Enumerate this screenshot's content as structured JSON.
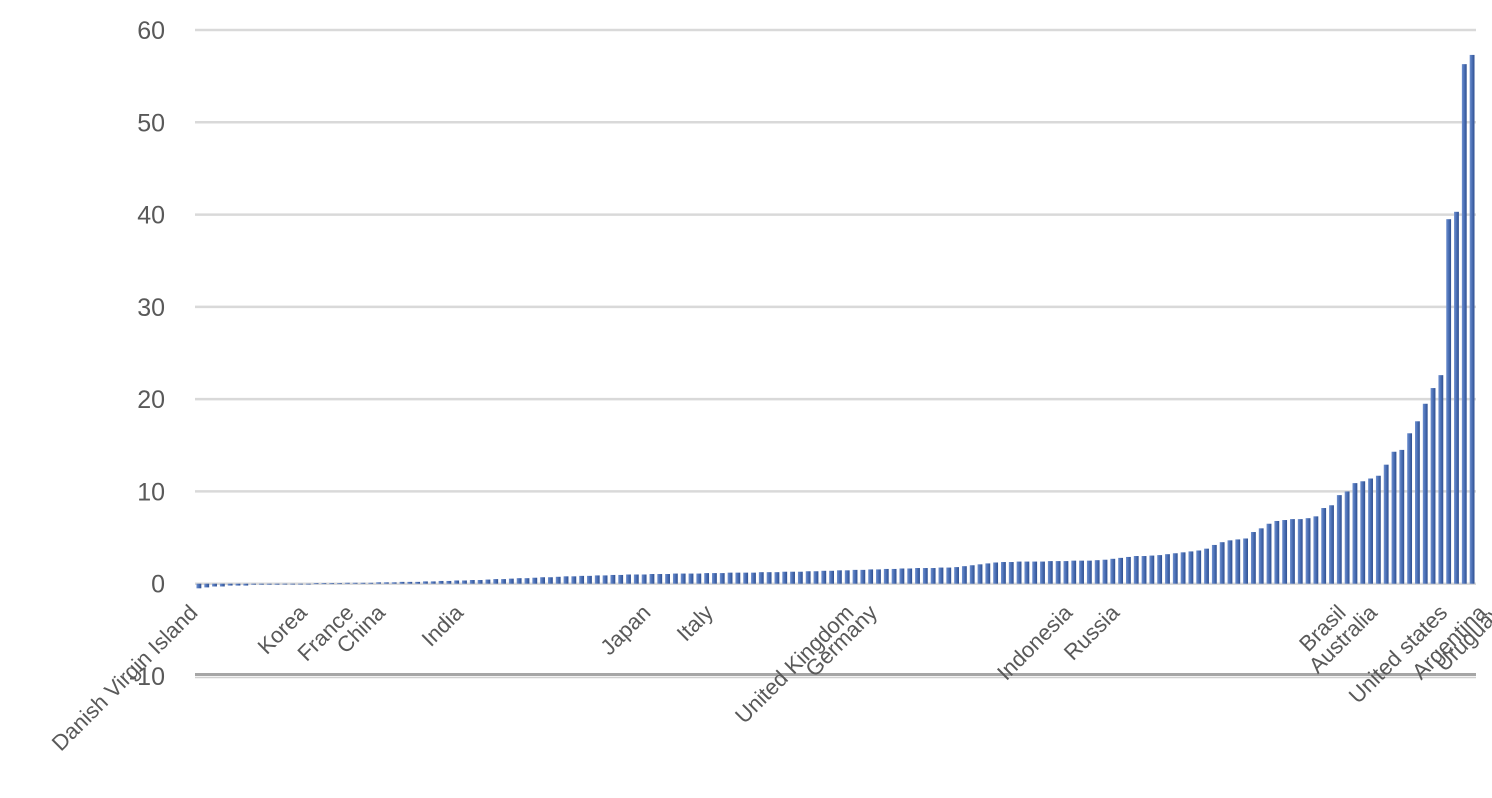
{
  "chart_data": {
    "type": "bar",
    "title": "",
    "xlabel": "",
    "ylabel": "",
    "ylim": [
      -10,
      60
    ],
    "yticks": [
      -10,
      0,
      10,
      20,
      30,
      40,
      50,
      60
    ],
    "grid": true,
    "legend": "none",
    "bar_color": "#4a6fb5",
    "values": [
      -0.5,
      -0.4,
      -0.3,
      -0.3,
      -0.2,
      -0.2,
      -0.2,
      -0.1,
      -0.1,
      -0.1,
      -0.1,
      -0.05,
      0.0,
      0.0,
      0.0,
      0.05,
      0.05,
      0.05,
      0.05,
      0.1,
      0.1,
      0.1,
      0.1,
      0.15,
      0.15,
      0.15,
      0.2,
      0.2,
      0.2,
      0.25,
      0.25,
      0.3,
      0.3,
      0.35,
      0.35,
      0.4,
      0.4,
      0.45,
      0.5,
      0.5,
      0.55,
      0.6,
      0.6,
      0.65,
      0.7,
      0.7,
      0.75,
      0.8,
      0.8,
      0.85,
      0.85,
      0.9,
      0.9,
      0.95,
      0.95,
      1.0,
      1.0,
      1.0,
      1.05,
      1.05,
      1.05,
      1.1,
      1.1,
      1.1,
      1.1,
      1.15,
      1.15,
      1.15,
      1.2,
      1.2,
      1.2,
      1.2,
      1.25,
      1.25,
      1.25,
      1.3,
      1.3,
      1.3,
      1.35,
      1.35,
      1.4,
      1.4,
      1.45,
      1.45,
      1.5,
      1.5,
      1.55,
      1.55,
      1.6,
      1.6,
      1.65,
      1.65,
      1.7,
      1.7,
      1.7,
      1.75,
      1.75,
      1.8,
      1.9,
      2.0,
      2.1,
      2.2,
      2.3,
      2.35,
      2.35,
      2.4,
      2.4,
      2.4,
      2.4,
      2.45,
      2.45,
      2.45,
      2.5,
      2.5,
      2.5,
      2.55,
      2.6,
      2.7,
      2.8,
      2.9,
      3.0,
      3.0,
      3.05,
      3.1,
      3.2,
      3.3,
      3.4,
      3.5,
      3.6,
      3.8,
      4.2,
      4.5,
      4.7,
      4.8,
      4.9,
      5.6,
      6.0,
      6.5,
      6.8,
      6.9,
      7.0,
      7.0,
      7.1,
      7.3,
      8.2,
      8.5,
      9.6,
      10.0,
      10.9,
      11.1,
      11.4,
      11.7,
      12.9,
      14.3,
      14.5,
      16.3,
      17.6,
      19.5,
      21.2,
      22.6,
      39.5,
      40.3,
      56.3,
      57.3
    ],
    "labeled_categories": [
      {
        "index": 0,
        "label": "Danish Virgin Island"
      },
      {
        "index": 14,
        "label": "Korea"
      },
      {
        "index": 20,
        "label": "France"
      },
      {
        "index": 24,
        "label": "China"
      },
      {
        "index": 34,
        "label": "India"
      },
      {
        "index": 58,
        "label": "Japan"
      },
      {
        "index": 66,
        "label": "Italy"
      },
      {
        "index": 84,
        "label": "United Kingdom"
      },
      {
        "index": 87,
        "label": "Germany"
      },
      {
        "index": 112,
        "label": "Indonesia"
      },
      {
        "index": 118,
        "label": "Russia"
      },
      {
        "index": 147,
        "label": "Brasil"
      },
      {
        "index": 151,
        "label": "Australia"
      },
      {
        "index": 160,
        "label": "United states"
      },
      {
        "index": 165,
        "label": "Argentina"
      },
      {
        "index": 167,
        "label": "Uruguay"
      }
    ]
  }
}
